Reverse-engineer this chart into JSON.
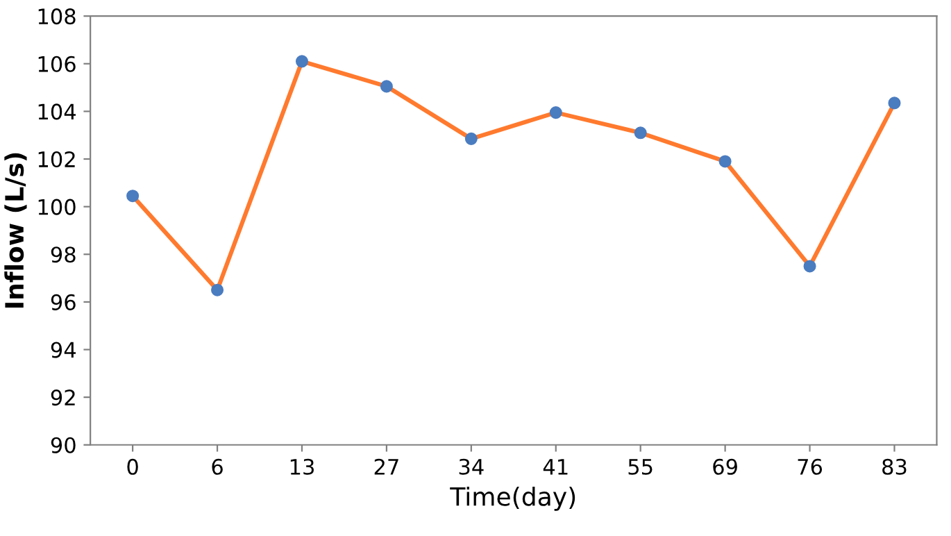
{
  "chart_data": {
    "type": "line",
    "xlabel": "Time(day)",
    "ylabel": "Inflow (L/s)",
    "categories": [
      "0",
      "6",
      "13",
      "27",
      "34",
      "41",
      "55",
      "69",
      "76",
      "83"
    ],
    "series": [
      {
        "color": "#ff7a2e",
        "values": [
          100.45,
          96.5,
          106.1,
          105.05,
          102.85,
          103.95,
          103.1,
          101.9,
          97.5,
          104.35
        ]
      }
    ],
    "ylim": [
      90,
      108
    ],
    "yticks": [
      90,
      92,
      94,
      96,
      98,
      100,
      102,
      104,
      106,
      108
    ],
    "marker": "circle",
    "line_style": "solid",
    "grid": false,
    "legend": false
  }
}
